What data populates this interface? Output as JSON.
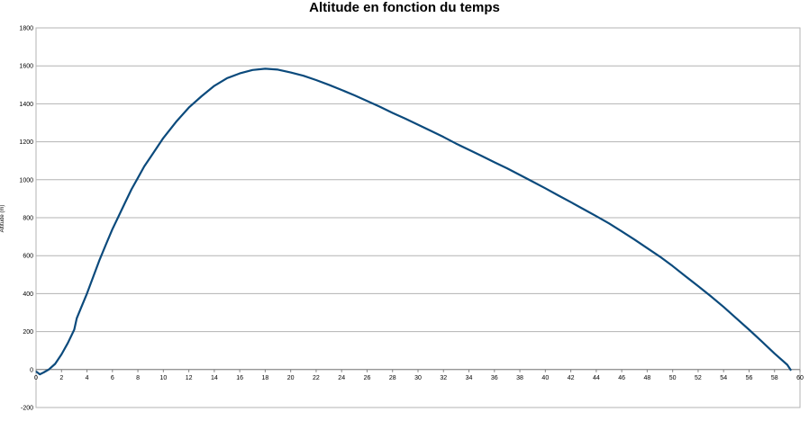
{
  "chart_data": {
    "type": "line",
    "title": "Altitude en fonction du temps",
    "xlabel": "",
    "ylabel": "Altitude (m)",
    "xlim": [
      0,
      60
    ],
    "ylim": [
      -200,
      1800
    ],
    "x_ticks": [
      0,
      2,
      4,
      6,
      8,
      10,
      12,
      14,
      16,
      18,
      20,
      22,
      24,
      26,
      28,
      30,
      32,
      34,
      36,
      38,
      40,
      42,
      44,
      46,
      48,
      50,
      52,
      54,
      56,
      58,
      60
    ],
    "y_ticks": [
      -200,
      0,
      200,
      400,
      600,
      800,
      1000,
      1200,
      1400,
      1600,
      1800
    ],
    "grid": true,
    "colors": {
      "line": "#0b4a7c",
      "grid": "#b3b3b3",
      "frame": "#b3b3b3"
    },
    "series": [
      {
        "x": [
          0,
          0.3,
          0.6,
          1,
          1.5,
          2,
          2.5,
          3,
          3.2,
          3.5,
          4,
          4.5,
          5,
          5.5,
          6,
          6.5,
          7,
          7.5,
          8,
          8.5,
          9,
          9.5,
          10,
          11,
          12,
          13,
          14,
          15,
          16,
          17,
          18,
          19,
          20,
          21,
          22,
          23,
          24,
          25,
          26,
          27,
          28,
          29,
          30,
          31,
          32,
          33,
          34,
          35,
          36,
          37,
          38,
          39,
          40,
          41,
          42,
          43,
          44,
          45,
          46,
          47,
          48,
          49,
          50,
          51,
          52,
          53,
          54,
          55,
          56,
          57,
          58,
          59,
          59.3
        ],
        "y": [
          -10,
          -25,
          -15,
          0,
          30,
          80,
          140,
          210,
          270,
          320,
          400,
          490,
          580,
          660,
          740,
          810,
          880,
          950,
          1010,
          1070,
          1120,
          1170,
          1220,
          1305,
          1380,
          1440,
          1495,
          1535,
          1560,
          1578,
          1585,
          1580,
          1565,
          1548,
          1525,
          1500,
          1473,
          1445,
          1415,
          1385,
          1352,
          1322,
          1290,
          1258,
          1225,
          1190,
          1158,
          1125,
          1092,
          1060,
          1025,
          990,
          955,
          918,
          882,
          845,
          808,
          770,
          728,
          685,
          640,
          595,
          545,
          492,
          440,
          386,
          330,
          270,
          210,
          148,
          85,
          25,
          -5
        ]
      }
    ]
  }
}
